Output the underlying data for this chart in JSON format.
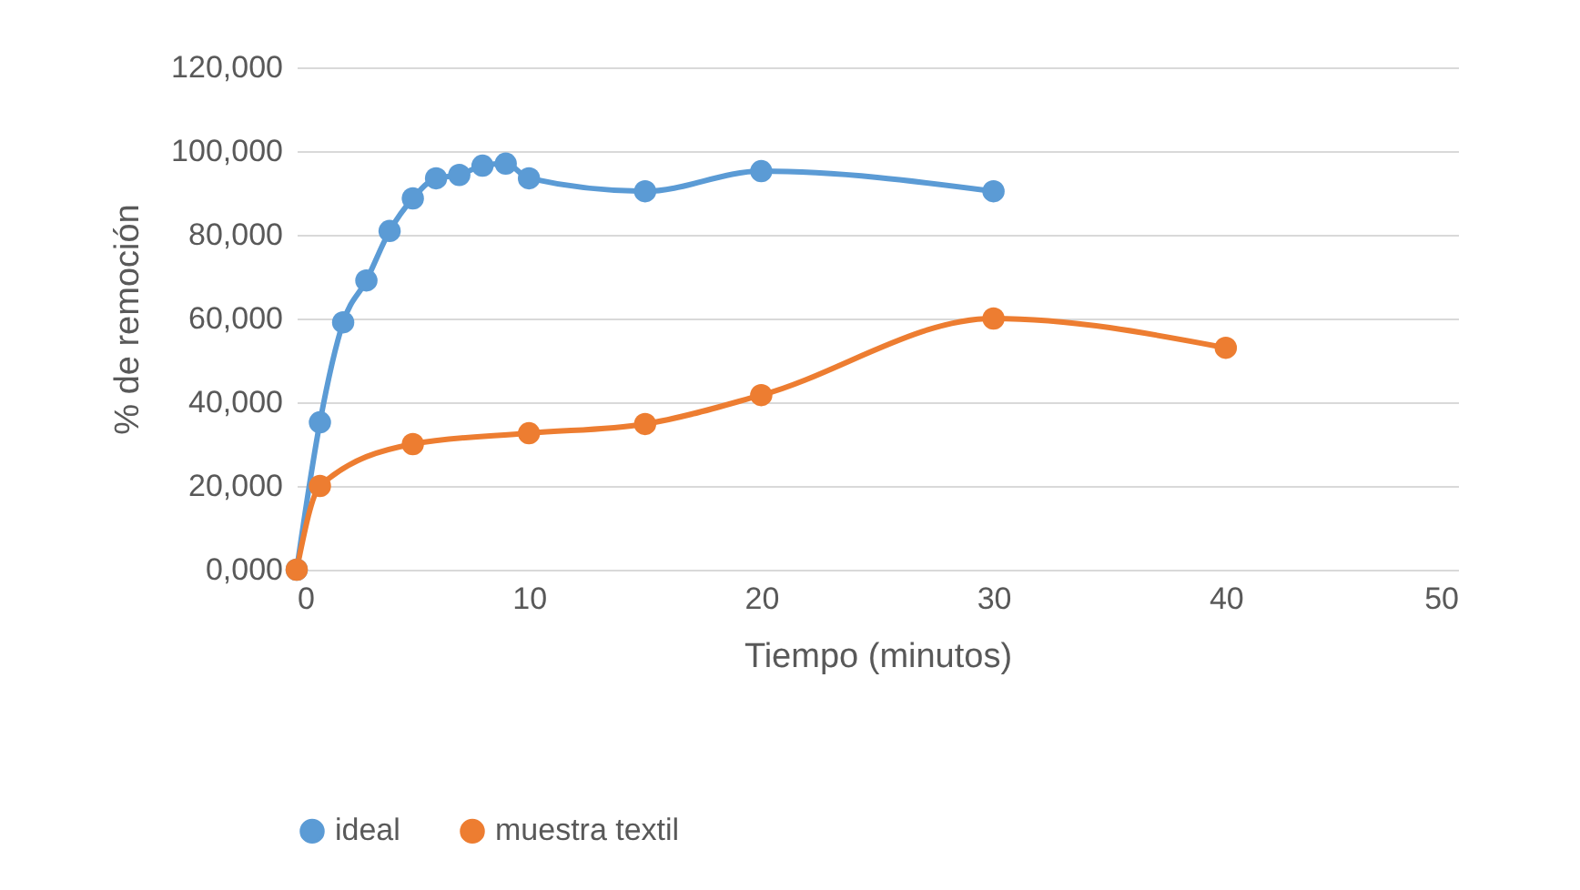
{
  "chart_data": {
    "type": "line",
    "xlabel": "Tiempo (minutos)",
    "ylabel": "% de remoción",
    "xlim": [
      0,
      50
    ],
    "xticks": [
      0,
      10,
      20,
      30,
      40,
      50
    ],
    "ylim": [
      0,
      120000
    ],
    "yticks": [
      {
        "value": 0,
        "label": "0,000"
      },
      {
        "value": 20000,
        "label": "20,000"
      },
      {
        "value": 40000,
        "label": "40,000"
      },
      {
        "value": 60000,
        "label": "60,000"
      },
      {
        "value": 80000,
        "label": "80,000"
      },
      {
        "value": 100000,
        "label": "100,000"
      },
      {
        "value": 120000,
        "label": "120,000"
      }
    ],
    "grid": "y",
    "legend": "bottom",
    "marker": "circle",
    "line_style": "solid",
    "series": [
      {
        "name": "ideal",
        "color": "#5b9bd5",
        "x": [
          0,
          1,
          2,
          3,
          4,
          5,
          6,
          7,
          8,
          9,
          10,
          15,
          20,
          30
        ],
        "values": [
          0,
          35200,
          59100,
          69100,
          80900,
          88700,
          93500,
          94300,
          96500,
          97000,
          93500,
          90400,
          95200,
          90400
        ]
      },
      {
        "name": "muestra textil",
        "color": "#ed7d31",
        "x": [
          0,
          1,
          5,
          10,
          15,
          20,
          30,
          40
        ],
        "values": [
          0,
          20000,
          30000,
          32600,
          34800,
          41700,
          60000,
          53000
        ]
      }
    ]
  }
}
